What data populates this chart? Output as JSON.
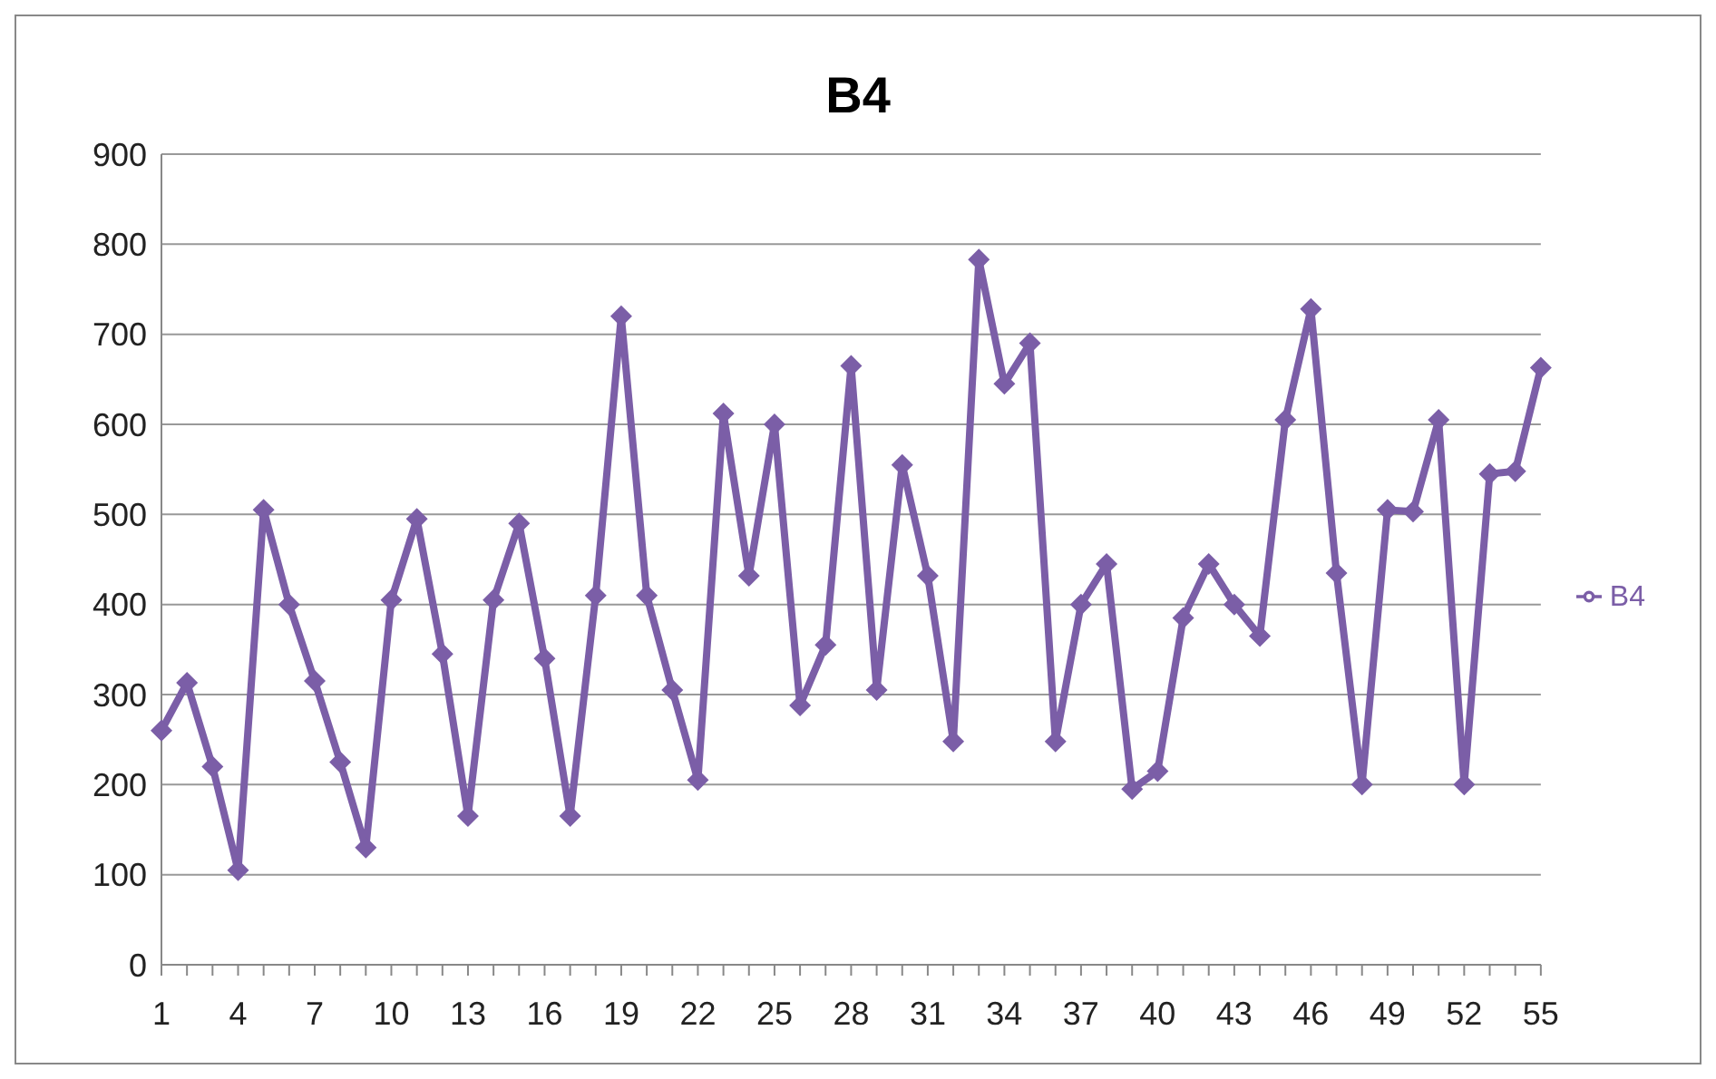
{
  "chart_data": {
    "type": "line",
    "title": "B4",
    "categories": [
      "1",
      null,
      null,
      "4",
      null,
      null,
      "7",
      null,
      null,
      "10",
      null,
      null,
      "13",
      null,
      null,
      "16",
      null,
      null,
      "19",
      null,
      null,
      "22",
      null,
      null,
      "25",
      null,
      null,
      "28",
      null,
      null,
      "31",
      null,
      null,
      "34",
      null,
      null,
      "37",
      null,
      null,
      "40",
      null,
      null,
      "43",
      null,
      null,
      "46",
      null,
      null,
      "49",
      null,
      null,
      "52",
      null,
      null,
      "55"
    ],
    "series": [
      {
        "name": "B4",
        "color": "#7b5ea7",
        "values": [
          260,
          313,
          220,
          105,
          505,
          400,
          315,
          225,
          130,
          405,
          495,
          345,
          165,
          405,
          490,
          340,
          165,
          410,
          720,
          410,
          305,
          205,
          612,
          432,
          600,
          288,
          355,
          665,
          305,
          555,
          432,
          248,
          783,
          645,
          690,
          248,
          400,
          445,
          195,
          215,
          385,
          445,
          400,
          365,
          605,
          728,
          435,
          200,
          505,
          503,
          605,
          200,
          545,
          548,
          663
        ]
      }
    ],
    "ylim": [
      0,
      900
    ],
    "yticks": [
      0,
      100,
      200,
      300,
      400,
      500,
      600,
      700,
      800,
      900
    ],
    "grid": "y",
    "legend": "right",
    "marker": "diamond",
    "line_style": "solid"
  }
}
